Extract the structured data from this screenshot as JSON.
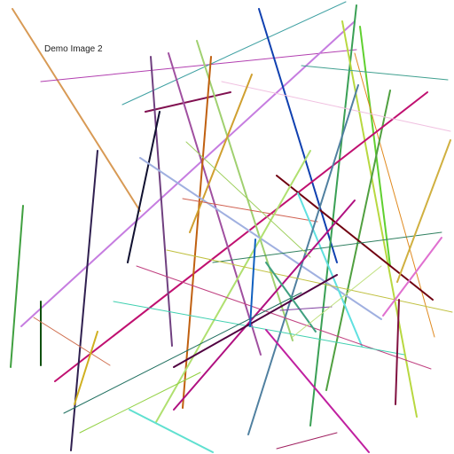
{
  "caption": "Demo Image 2",
  "background_color": "#ffffff"
}
